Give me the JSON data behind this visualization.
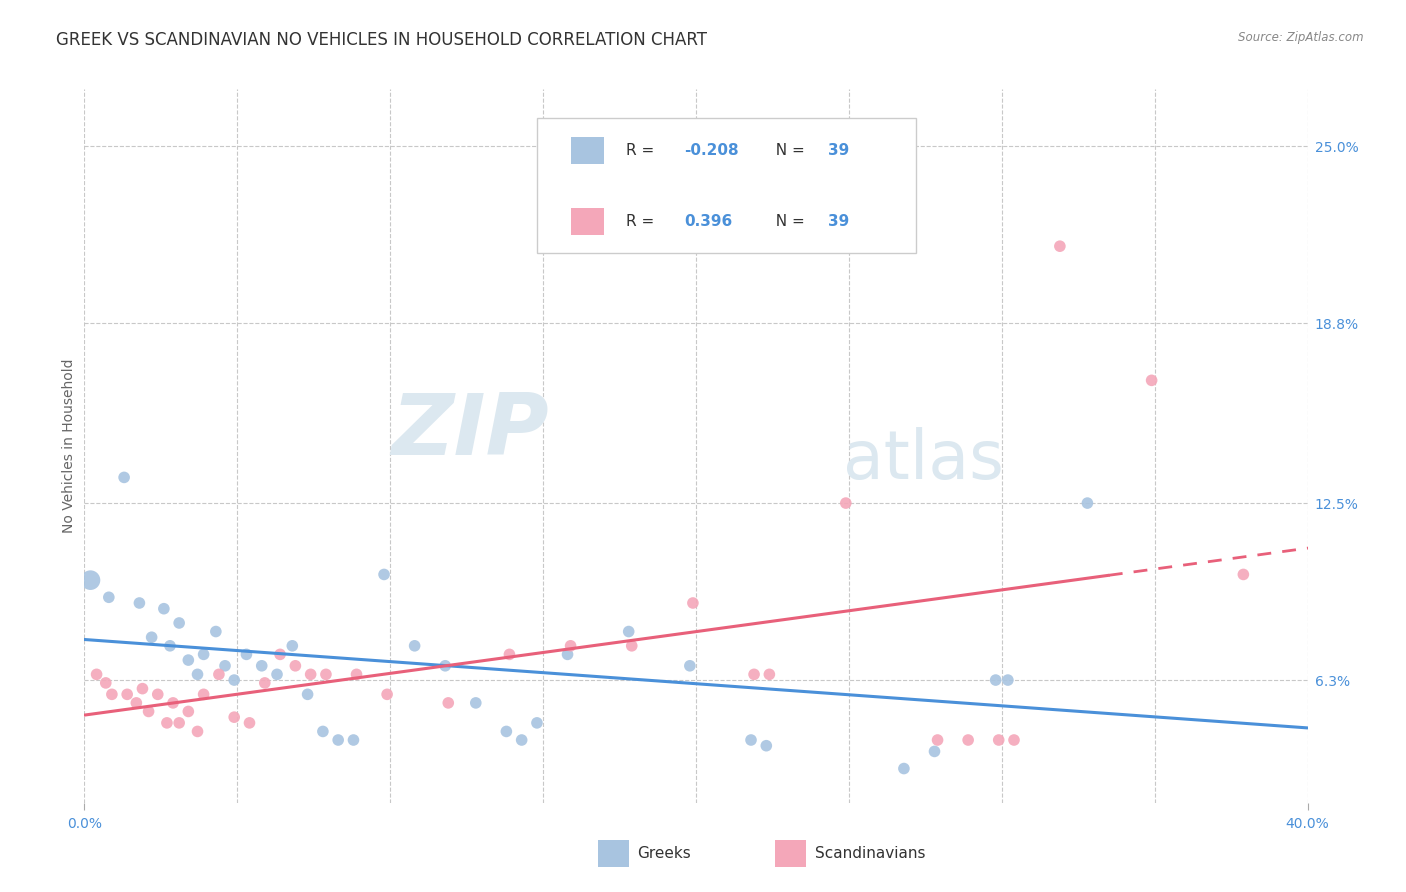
{
  "title": "GREEK VS SCANDINAVIAN NO VEHICLES IN HOUSEHOLD CORRELATION CHART",
  "source": "Source: ZipAtlas.com",
  "ylabel": "No Vehicles in Household",
  "xlabel_ticks": [
    "0.0%",
    "40.0%"
  ],
  "xlabel_vals": [
    0.0,
    0.4
  ],
  "ylabel_ticks": [
    "6.3%",
    "12.5%",
    "18.8%",
    "25.0%"
  ],
  "ylabel_vals": [
    0.063,
    0.125,
    0.188,
    0.25
  ],
  "xlim": [
    0.0,
    0.4
  ],
  "ylim": [
    0.02,
    0.27
  ],
  "greek_color": "#a8c4e0",
  "scand_color": "#f4a7b9",
  "greek_line_color": "#4a90d9",
  "scand_line_color": "#e8607a",
  "greek_R": -0.208,
  "greek_N": 39,
  "scand_R": 0.396,
  "scand_N": 39,
  "legend_greek_label": "Greeks",
  "legend_scand_label": "Scandinavians",
  "watermark_zip": "ZIP",
  "watermark_atlas": "atlas",
  "background_color": "#ffffff",
  "grid_color": "#c8c8c8",
  "axis_label_color": "#4a90d9",
  "text_color": "#333333",
  "greek_scatter": [
    [
      0.002,
      0.098
    ],
    [
      0.008,
      0.092
    ],
    [
      0.013,
      0.134
    ],
    [
      0.018,
      0.09
    ],
    [
      0.022,
      0.078
    ],
    [
      0.026,
      0.088
    ],
    [
      0.028,
      0.075
    ],
    [
      0.031,
      0.083
    ],
    [
      0.034,
      0.07
    ],
    [
      0.037,
      0.065
    ],
    [
      0.039,
      0.072
    ],
    [
      0.043,
      0.08
    ],
    [
      0.046,
      0.068
    ],
    [
      0.049,
      0.063
    ],
    [
      0.053,
      0.072
    ],
    [
      0.058,
      0.068
    ],
    [
      0.063,
      0.065
    ],
    [
      0.068,
      0.075
    ],
    [
      0.073,
      0.058
    ],
    [
      0.078,
      0.045
    ],
    [
      0.083,
      0.042
    ],
    [
      0.088,
      0.042
    ],
    [
      0.098,
      0.1
    ],
    [
      0.108,
      0.075
    ],
    [
      0.118,
      0.068
    ],
    [
      0.128,
      0.055
    ],
    [
      0.138,
      0.045
    ],
    [
      0.143,
      0.042
    ],
    [
      0.148,
      0.048
    ],
    [
      0.158,
      0.072
    ],
    [
      0.178,
      0.08
    ],
    [
      0.198,
      0.068
    ],
    [
      0.218,
      0.042
    ],
    [
      0.223,
      0.04
    ],
    [
      0.268,
      0.032
    ],
    [
      0.278,
      0.038
    ],
    [
      0.298,
      0.063
    ],
    [
      0.302,
      0.063
    ],
    [
      0.328,
      0.125
    ]
  ],
  "greek_large_idx": 0,
  "scand_scatter": [
    [
      0.004,
      0.065
    ],
    [
      0.007,
      0.062
    ],
    [
      0.009,
      0.058
    ],
    [
      0.014,
      0.058
    ],
    [
      0.017,
      0.055
    ],
    [
      0.019,
      0.06
    ],
    [
      0.021,
      0.052
    ],
    [
      0.024,
      0.058
    ],
    [
      0.027,
      0.048
    ],
    [
      0.029,
      0.055
    ],
    [
      0.031,
      0.048
    ],
    [
      0.034,
      0.052
    ],
    [
      0.037,
      0.045
    ],
    [
      0.039,
      0.058
    ],
    [
      0.044,
      0.065
    ],
    [
      0.049,
      0.05
    ],
    [
      0.054,
      0.048
    ],
    [
      0.059,
      0.062
    ],
    [
      0.064,
      0.072
    ],
    [
      0.069,
      0.068
    ],
    [
      0.074,
      0.065
    ],
    [
      0.079,
      0.065
    ],
    [
      0.089,
      0.065
    ],
    [
      0.099,
      0.058
    ],
    [
      0.119,
      0.055
    ],
    [
      0.139,
      0.072
    ],
    [
      0.159,
      0.075
    ],
    [
      0.179,
      0.075
    ],
    [
      0.199,
      0.09
    ],
    [
      0.219,
      0.065
    ],
    [
      0.224,
      0.065
    ],
    [
      0.249,
      0.125
    ],
    [
      0.279,
      0.042
    ],
    [
      0.289,
      0.042
    ],
    [
      0.299,
      0.042
    ],
    [
      0.304,
      0.042
    ],
    [
      0.319,
      0.215
    ],
    [
      0.349,
      0.168
    ],
    [
      0.379,
      0.1
    ]
  ],
  "title_fontsize": 12,
  "axis_fontsize": 10,
  "tick_fontsize": 10,
  "legend_fontsize": 11
}
